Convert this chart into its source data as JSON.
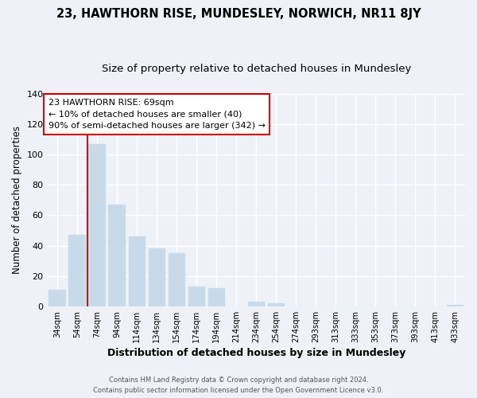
{
  "title": "23, HAWTHORN RISE, MUNDESLEY, NORWICH, NR11 8JY",
  "subtitle": "Size of property relative to detached houses in Mundesley",
  "xlabel": "Distribution of detached houses by size in Mundesley",
  "ylabel": "Number of detached properties",
  "bar_color": "#c8daea",
  "bar_edge_color": "#c8daea",
  "categories": [
    "34sqm",
    "54sqm",
    "74sqm",
    "94sqm",
    "114sqm",
    "134sqm",
    "154sqm",
    "174sqm",
    "194sqm",
    "214sqm",
    "234sqm",
    "254sqm",
    "274sqm",
    "293sqm",
    "313sqm",
    "333sqm",
    "353sqm",
    "373sqm",
    "393sqm",
    "413sqm",
    "433sqm"
  ],
  "values": [
    11,
    47,
    107,
    67,
    46,
    38,
    35,
    13,
    12,
    0,
    3,
    2,
    0,
    0,
    0,
    0,
    0,
    0,
    0,
    0,
    1
  ],
  "ylim": [
    0,
    140
  ],
  "yticks": [
    0,
    20,
    40,
    60,
    80,
    100,
    120,
    140
  ],
  "vline_color": "#cc0000",
  "annotation_title": "23 HAWTHORN RISE: 69sqm",
  "annotation_line1": "← 10% of detached houses are smaller (40)",
  "annotation_line2": "90% of semi-detached houses are larger (342) →",
  "footer_line1": "Contains HM Land Registry data © Crown copyright and database right 2024.",
  "footer_line2": "Contains public sector information licensed under the Open Government Licence v3.0.",
  "background_color": "#eef2f8",
  "plot_background_color": "#eef2f8",
  "grid_color": "#ffffff",
  "title_fontsize": 10.5,
  "subtitle_fontsize": 9.5,
  "xlabel_fontsize": 9,
  "ylabel_fontsize": 8.5
}
